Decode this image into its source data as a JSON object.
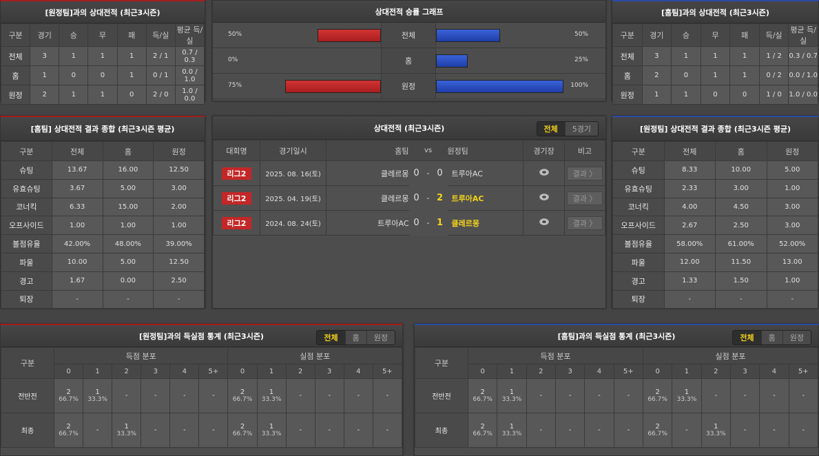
{
  "away_h2h": {
    "title": "[원정팀]과의 상대전적 (최근3시즌)",
    "headers": [
      "구분",
      "경기",
      "승",
      "무",
      "패",
      "득/실",
      "평균 득/실"
    ],
    "rows": [
      [
        "전체",
        "3",
        "1",
        "1",
        "1",
        "2 / 1",
        "0.7 / 0.3"
      ],
      [
        "홈",
        "1",
        "0",
        "0",
        "1",
        "0 / 1",
        "0.0 / 1.0"
      ],
      [
        "원정",
        "2",
        "1",
        "1",
        "0",
        "2 / 0",
        "1.0 / 0.0"
      ]
    ]
  },
  "home_h2h": {
    "title": "[홈팀]과의 상대전적 (최근3시즌)",
    "headers": [
      "구분",
      "경기",
      "승",
      "무",
      "패",
      "득/실",
      "평균 득/실"
    ],
    "rows": [
      [
        "전체",
        "3",
        "1",
        "1",
        "1",
        "1 / 2",
        "0.3 / 0.7"
      ],
      [
        "홈",
        "2",
        "0",
        "1",
        "1",
        "0 / 2",
        "0.0 / 1.0"
      ],
      [
        "원정",
        "1",
        "1",
        "0",
        "0",
        "1 / 0",
        "1.0 / 0.0"
      ]
    ]
  },
  "graph": {
    "title": "상대전적 승률 그래프",
    "colors": {
      "home": "#c42727",
      "away": "#2a4fc8"
    },
    "rows": [
      {
        "label": "전체",
        "left": "50%",
        "left_value": 50,
        "right": "50%",
        "right_value": 50
      },
      {
        "label": "홈",
        "left": "0%",
        "left_value": 0,
        "right": "25%",
        "right_value": 25
      },
      {
        "label": "원정",
        "left": "75%",
        "left_value": 75,
        "right": "100%",
        "right_value": 100
      }
    ]
  },
  "home_summary": {
    "title": "[홈팀] 상대전적 결과 종합 (최근3시즌 평균)",
    "headers": [
      "구분",
      "전체",
      "홈",
      "원정"
    ],
    "rows": [
      [
        "슈팅",
        "13.67",
        "16.00",
        "12.50"
      ],
      [
        "유효슈팅",
        "3.67",
        "5.00",
        "3.00"
      ],
      [
        "코너킥",
        "6.33",
        "15.00",
        "2.00"
      ],
      [
        "오프사이드",
        "1.00",
        "1.00",
        "1.00"
      ],
      [
        "볼점유율",
        "42.00%",
        "48.00%",
        "39.00%"
      ],
      [
        "파울",
        "10.00",
        "5.00",
        "12.50"
      ],
      [
        "경고",
        "1.67",
        "0.00",
        "2.50"
      ],
      [
        "퇴장",
        "-",
        "-",
        "-"
      ]
    ]
  },
  "away_summary": {
    "title": "[원정팀] 상대전적 결과 종합 (최근3시즌 평균)",
    "headers": [
      "구분",
      "전체",
      "홈",
      "원정"
    ],
    "rows": [
      [
        "슈팅",
        "8.33",
        "10.00",
        "5.00"
      ],
      [
        "유효슈팅",
        "2.33",
        "3.00",
        "1.00"
      ],
      [
        "코너킥",
        "4.00",
        "4.50",
        "3.00"
      ],
      [
        "오프사이드",
        "2.67",
        "2.50",
        "3.00"
      ],
      [
        "볼점유율",
        "58.00%",
        "61.00%",
        "52.00%"
      ],
      [
        "파울",
        "12.00",
        "11.50",
        "13.00"
      ],
      [
        "경고",
        "1.33",
        "1.50",
        "1.00"
      ],
      [
        "퇴장",
        "-",
        "-",
        "-"
      ]
    ]
  },
  "matches": {
    "title": "상대전적 (최근3시즌)",
    "tabs": [
      "전체",
      "5경기"
    ],
    "headers": {
      "league": "대회명",
      "date": "경기일시",
      "home": "홈팀",
      "vs": "vs",
      "away": "원정팀",
      "stadium": "경기장",
      "note": "비고"
    },
    "rows": [
      {
        "league": "리그2",
        "date": "2025. 08. 16(토)",
        "home": "클레르몽",
        "hs": "0",
        "sep": "-",
        "as": "0",
        "away": "트루아AC",
        "winner": "none",
        "result": "결과 〉"
      },
      {
        "league": "리그2",
        "date": "2025. 04. 19(토)",
        "home": "클레르몽",
        "hs": "0",
        "sep": "-",
        "as": "2",
        "away": "트루아AC",
        "winner": "away",
        "result": "결과 〉"
      },
      {
        "league": "리그2",
        "date": "2024. 08. 24(토)",
        "home": "트루아AC",
        "hs": "0",
        "sep": "-",
        "as": "1",
        "away": "클레르몽",
        "winner": "away",
        "result": "결과 〉"
      }
    ]
  },
  "away_goals": {
    "title": "[원정팀]과의 득실점 통계 (최근3시즌)",
    "tabs": [
      "전체",
      "홈",
      "원정"
    ],
    "label_header": "구분",
    "scored": "득점 분포",
    "conceded": "실점 분포",
    "buckets": [
      "0",
      "1",
      "2",
      "3",
      "4",
      "5+",
      "0",
      "1",
      "2",
      "3",
      "4",
      "5+"
    ],
    "rows": [
      {
        "label": "전반전",
        "cells": [
          [
            "2",
            "66.7%"
          ],
          [
            "1",
            "33.3%"
          ],
          [
            "-",
            ""
          ],
          [
            "-",
            ""
          ],
          [
            "-",
            ""
          ],
          [
            "-",
            ""
          ],
          [
            "2",
            "66.7%"
          ],
          [
            "1",
            "33.3%"
          ],
          [
            "-",
            ""
          ],
          [
            "-",
            ""
          ],
          [
            "-",
            ""
          ],
          [
            "-",
            ""
          ]
        ]
      },
      {
        "label": "최종",
        "cells": [
          [
            "2",
            "66.7%"
          ],
          [
            "-",
            ""
          ],
          [
            "1",
            "33.3%"
          ],
          [
            "-",
            ""
          ],
          [
            "-",
            ""
          ],
          [
            "-",
            ""
          ],
          [
            "2",
            "66.7%"
          ],
          [
            "1",
            "33.3%"
          ],
          [
            "-",
            ""
          ],
          [
            "-",
            ""
          ],
          [
            "-",
            ""
          ],
          [
            "-",
            ""
          ]
        ]
      }
    ]
  },
  "home_goals": {
    "title": "[홈팀]과의 득실점 통계 (최근3시즌)",
    "tabs": [
      "전체",
      "홈",
      "원정"
    ],
    "label_header": "구분",
    "scored": "득점 분포",
    "conceded": "실점 분포",
    "buckets": [
      "0",
      "1",
      "2",
      "3",
      "4",
      "5+",
      "0",
      "1",
      "2",
      "3",
      "4",
      "5+"
    ],
    "rows": [
      {
        "label": "전반전",
        "cells": [
          [
            "2",
            "66.7%"
          ],
          [
            "1",
            "33.3%"
          ],
          [
            "-",
            ""
          ],
          [
            "-",
            ""
          ],
          [
            "-",
            ""
          ],
          [
            "-",
            ""
          ],
          [
            "2",
            "66.7%"
          ],
          [
            "1",
            "33.3%"
          ],
          [
            "-",
            ""
          ],
          [
            "-",
            ""
          ],
          [
            "-",
            ""
          ],
          [
            "-",
            ""
          ]
        ]
      },
      {
        "label": "최종",
        "cells": [
          [
            "2",
            "66.7%"
          ],
          [
            "1",
            "33.3%"
          ],
          [
            "-",
            ""
          ],
          [
            "-",
            ""
          ],
          [
            "-",
            ""
          ],
          [
            "-",
            ""
          ],
          [
            "2",
            "66.7%"
          ],
          [
            "-",
            ""
          ],
          [
            "1",
            "33.3%"
          ],
          [
            "-",
            ""
          ],
          [
            "-",
            ""
          ],
          [
            "-",
            ""
          ]
        ]
      }
    ]
  }
}
